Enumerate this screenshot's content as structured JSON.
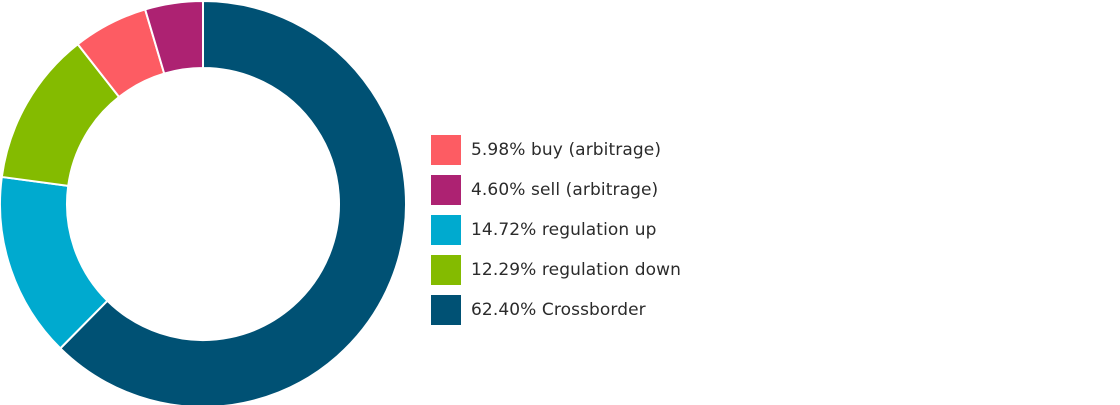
{
  "chart_data": {
    "type": "donut",
    "slices": [
      {
        "label": "5.98% buy (arbitrage)",
        "value": 5.98,
        "color": "#fd5c63"
      },
      {
        "label": "4.60% sell (arbitrage)",
        "value": 4.6,
        "color": "#ad2272"
      },
      {
        "label": "14.72% regulation up",
        "value": 14.72,
        "color": "#00aacf"
      },
      {
        "label": "12.29% regulation down",
        "value": 12.29,
        "color": "#84bb00"
      },
      {
        "label": "62.40% Crossborder",
        "value": 62.4,
        "color": "#005174"
      }
    ],
    "drawing_order": [
      "62.40% Crossborder",
      "14.72% regulation up",
      "12.29% regulation down",
      "5.98% buy (arbitrage)",
      "4.60% sell (arbitrage)"
    ],
    "start_angle": "12 o'clock",
    "direction": "clockwise",
    "legend_position": "right"
  }
}
